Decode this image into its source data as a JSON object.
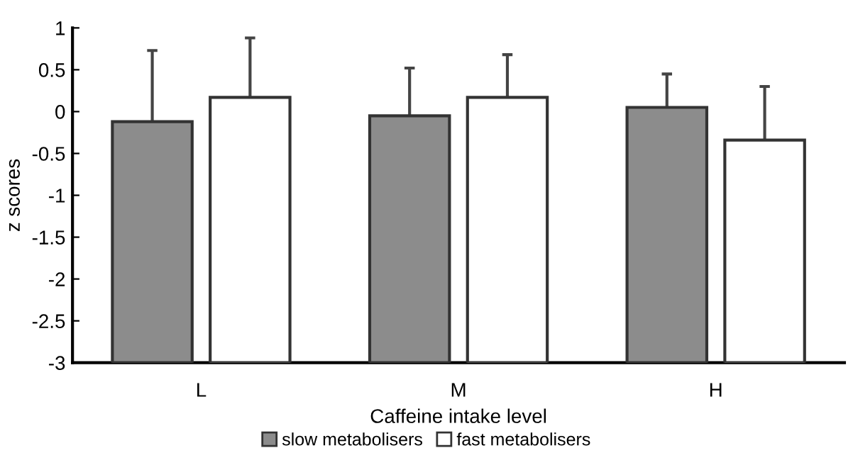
{
  "chart_data": {
    "type": "bar",
    "xlabel": "Caffeine intake level",
    "ylabel": "z scores",
    "categories": [
      "L",
      "M",
      "H"
    ],
    "series": [
      {
        "name": "slow metabolisers",
        "color": "#8c8c8c",
        "base": [
          -3,
          -3,
          -3
        ],
        "values": [
          2.88,
          2.95,
          3.05
        ],
        "errors": [
          [
            -0.12,
            0.73
          ],
          [
            -0.05,
            0.52
          ],
          [
            0.05,
            0.45
          ]
        ]
      },
      {
        "name": "fast metabolisers",
        "color": "#ffffff",
        "base": [
          -3,
          -3,
          -3
        ],
        "values": [
          3.17,
          3.17,
          2.66
        ],
        "errors": [
          [
            0.17,
            0.88
          ],
          [
            0.17,
            0.68
          ],
          [
            -0.34,
            0.3
          ]
        ]
      }
    ],
    "ylim": [
      -3,
      1
    ],
    "yticks": [
      -3,
      -2.5,
      -2,
      -1.5,
      -1,
      -0.5,
      0,
      0.5,
      1
    ],
    "grid": false,
    "legend": "bottom"
  }
}
